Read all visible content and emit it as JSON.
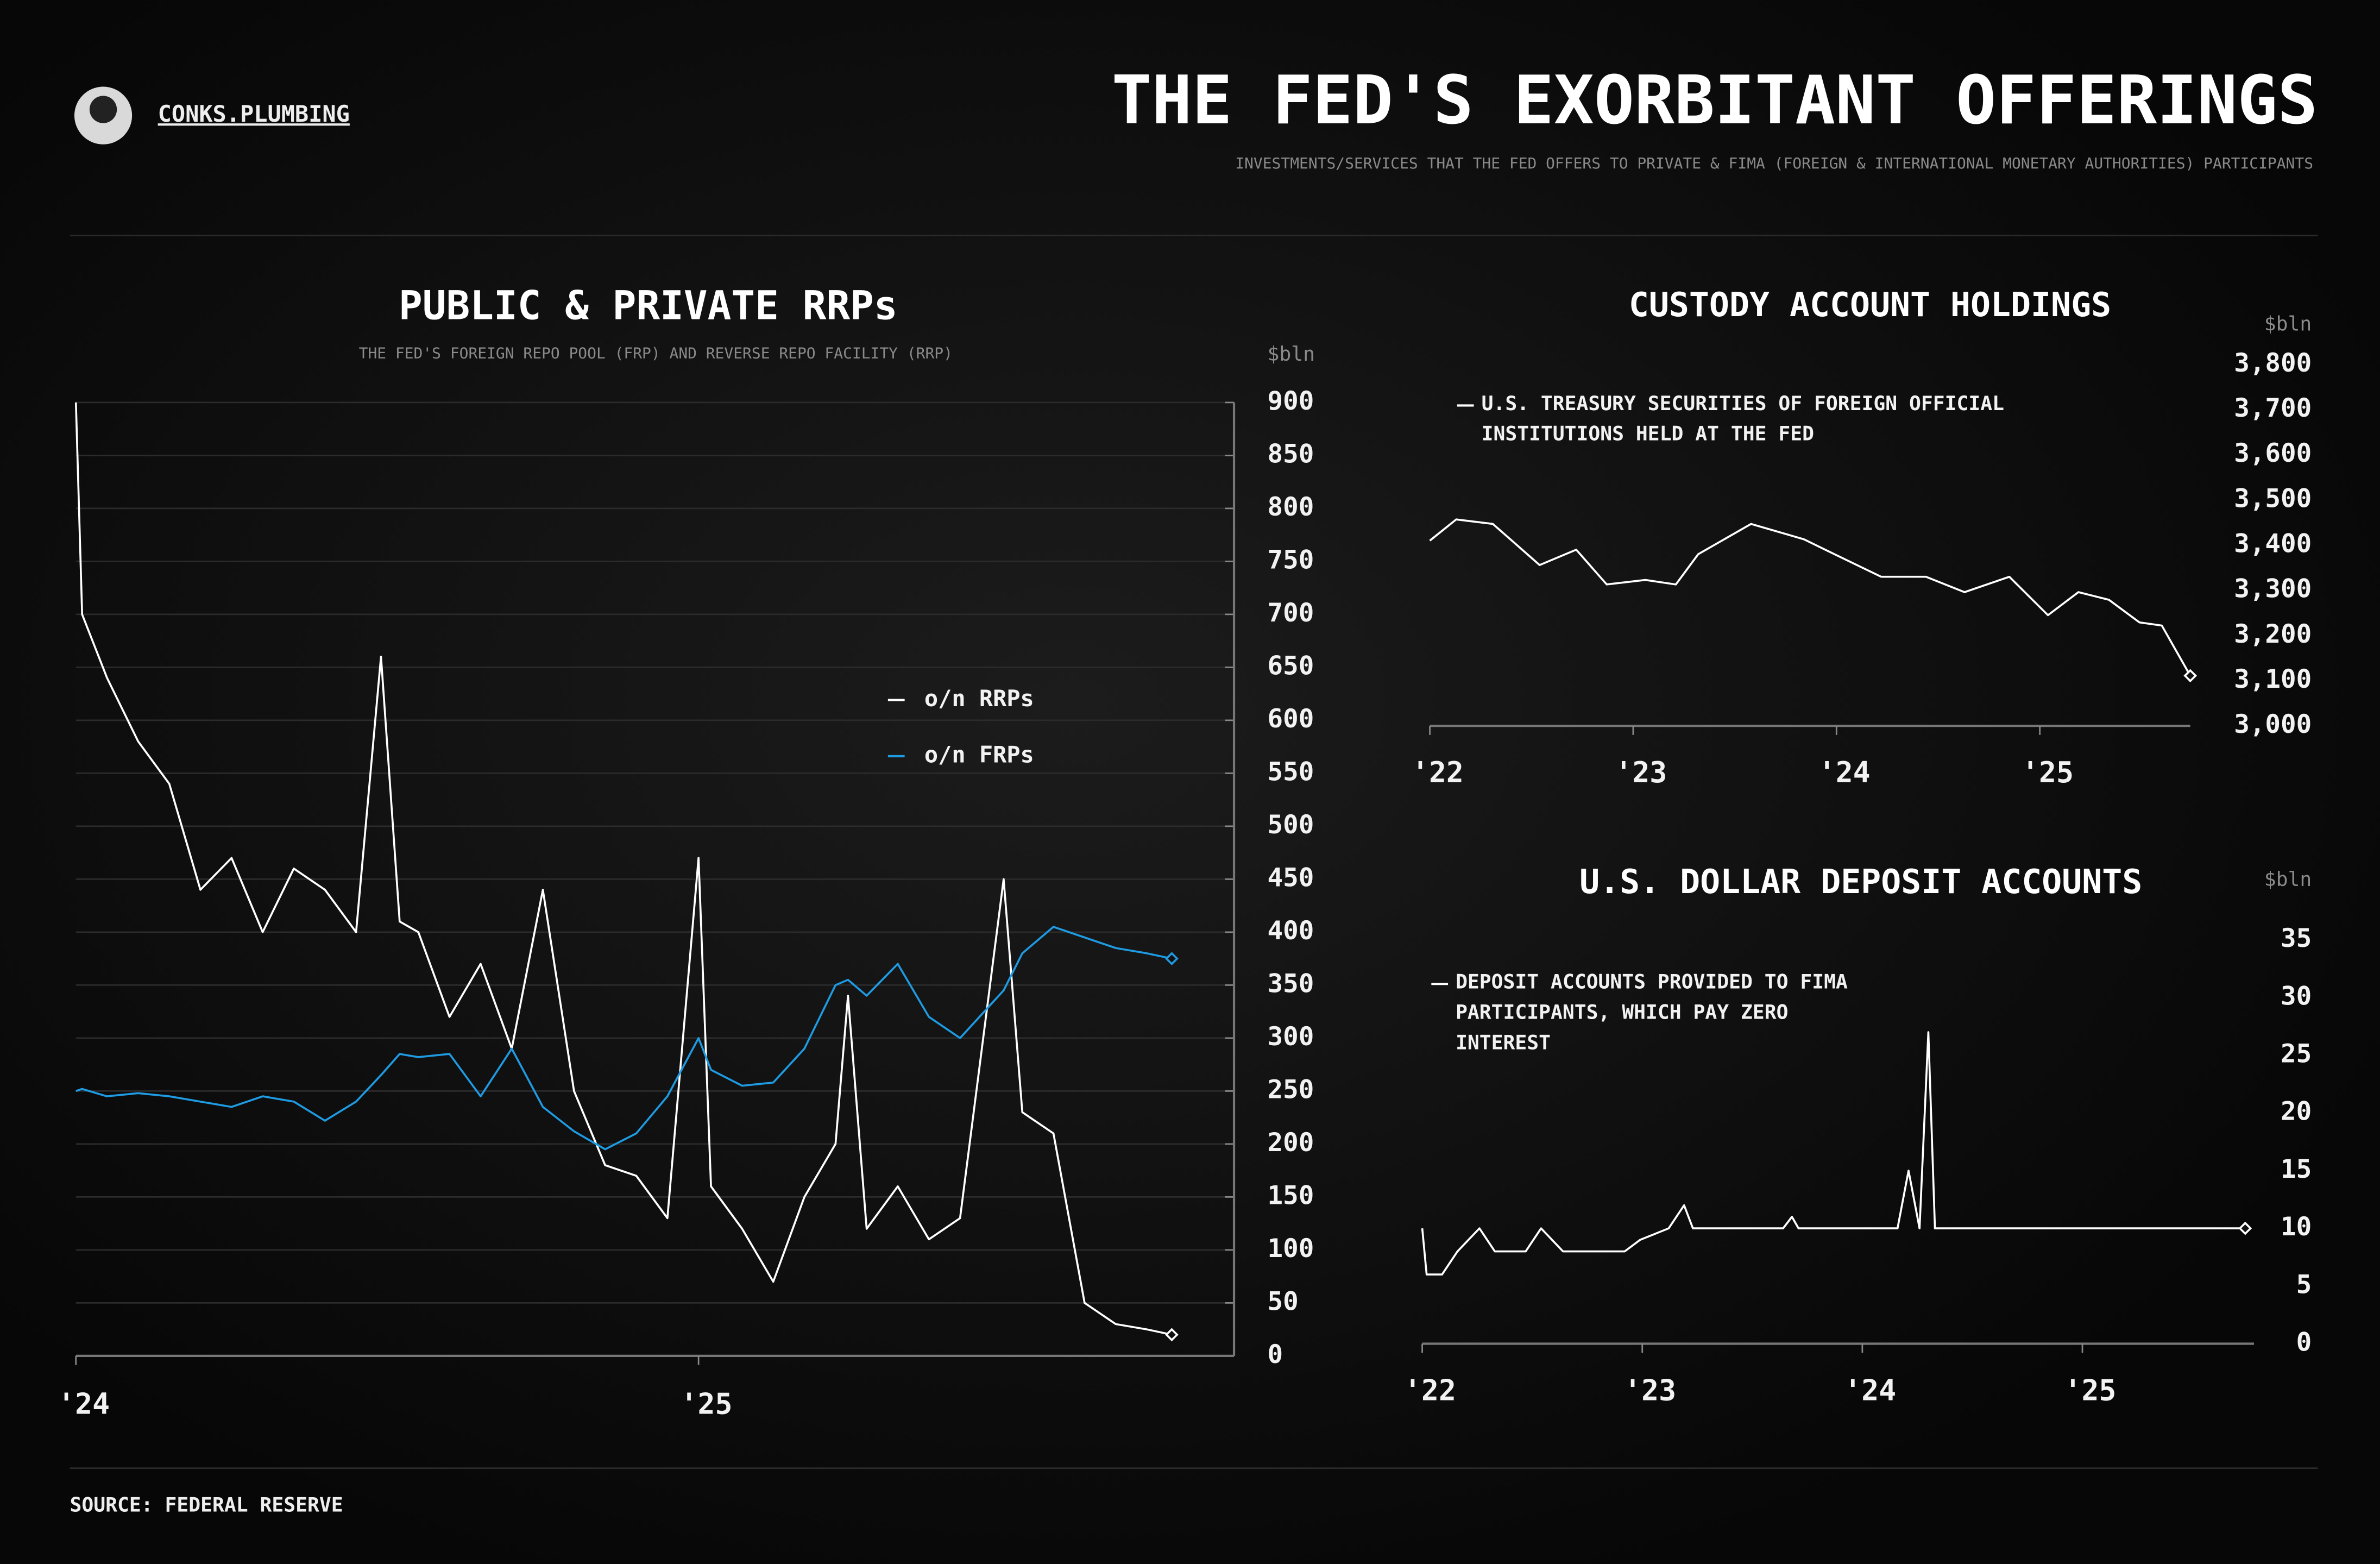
{
  "header": {
    "brand": "CONKS.PLUMBING",
    "title": "THE FED'S EXORBITANT OFFERINGS",
    "subtitle": "INVESTMENTS/SERVICES THAT THE FED OFFERS TO PRIVATE & FIMA (FOREIGN & INTERNATIONAL MONETARY AUTHORITIES) PARTICIPANTS"
  },
  "footer": {
    "source": "SOURCE: FEDERAL RESERVE"
  },
  "chart_data": [
    {
      "type": "line",
      "title": "PUBLIC & PRIVATE RRPs",
      "subtitle": "THE FED'S FOREIGN REPO POOL (FRP) AND REVERSE REPO FACILITY (RRP)",
      "y_unit": "$bln",
      "grid": true,
      "xlim": [
        2024,
        2025.86
      ],
      "xticks": [
        {
          "value": 2024,
          "label": "'24"
        },
        {
          "value": 2025,
          "label": "'25"
        }
      ],
      "ylim": [
        0,
        900
      ],
      "yticks": [
        0,
        50,
        100,
        150,
        200,
        250,
        300,
        350,
        400,
        450,
        500,
        550,
        600,
        650,
        700,
        750,
        800,
        850,
        900
      ],
      "x": [
        2024.0,
        2024.01,
        2024.05,
        2024.1,
        2024.15,
        2024.2,
        2024.25,
        2024.3,
        2024.35,
        2024.4,
        2024.45,
        2024.49,
        2024.52,
        2024.55,
        2024.6,
        2024.65,
        2024.7,
        2024.75,
        2024.8,
        2024.85,
        2024.9,
        2024.95,
        2025.0,
        2025.02,
        2025.07,
        2025.12,
        2025.17,
        2025.22,
        2025.24,
        2025.27,
        2025.32,
        2025.37,
        2025.42,
        2025.49,
        2025.52,
        2025.57,
        2025.62,
        2025.67,
        2025.72,
        2025.76
      ],
      "series": [
        {
          "name": "o/n RRPs",
          "color": "#ffffff",
          "values": [
            900,
            700,
            640,
            580,
            540,
            440,
            470,
            400,
            460,
            440,
            400,
            660,
            410,
            400,
            320,
            370,
            290,
            440,
            250,
            180,
            170,
            130,
            470,
            160,
            120,
            70,
            150,
            200,
            340,
            120,
            160,
            110,
            130,
            450,
            230,
            210,
            50,
            30,
            25,
            20
          ]
        },
        {
          "name": "o/n FRPs",
          "color": "#1e9be3",
          "values": [
            250,
            252,
            245,
            248,
            245,
            240,
            235,
            245,
            240,
            222,
            240,
            265,
            285,
            282,
            285,
            245,
            290,
            235,
            212,
            195,
            210,
            245,
            300,
            270,
            255,
            258,
            290,
            350,
            355,
            340,
            370,
            320,
            300,
            345,
            380,
            405,
            395,
            385,
            380,
            375
          ]
        }
      ]
    },
    {
      "type": "line",
      "title": "CUSTODY ACCOUNT HOLDINGS",
      "y_unit": "$bln",
      "grid": false,
      "xlim": [
        2022,
        2025.74
      ],
      "xticks": [
        {
          "value": 2022,
          "label": "'22"
        },
        {
          "value": 2023,
          "label": "'23"
        },
        {
          "value": 2024,
          "label": "'24"
        },
        {
          "value": 2025,
          "label": "'25"
        }
      ],
      "ylim": [
        3000,
        3800
      ],
      "yticks": [
        {
          "value": 3000,
          "label": "3,000"
        },
        {
          "value": 3100,
          "label": "3,100"
        },
        {
          "value": 3200,
          "label": "3,200"
        },
        {
          "value": 3300,
          "label": "3,300"
        },
        {
          "value": 3400,
          "label": "3,400"
        },
        {
          "value": 3500,
          "label": "3,500"
        },
        {
          "value": 3600,
          "label": "3,600"
        },
        {
          "value": 3700,
          "label": "3,700"
        },
        {
          "value": 3800,
          "label": "3,800"
        }
      ],
      "x": [
        2022.0,
        2022.13,
        2022.31,
        2022.54,
        2022.72,
        2022.87,
        2023.06,
        2023.21,
        2023.32,
        2023.58,
        2023.84,
        2023.99,
        2024.22,
        2024.44,
        2024.63,
        2024.85,
        2025.04,
        2025.19,
        2025.34,
        2025.49,
        2025.6,
        2025.74
      ],
      "series": [
        {
          "name": "U.S. TREASURY SECURITIES OF FOREIGN OFFICIAL INSTITUTIONS HELD AT THE FED",
          "color": "#ffffff",
          "values": [
            3410,
            3457,
            3447,
            3356,
            3390,
            3313,
            3323,
            3313,
            3380,
            3447,
            3413,
            3380,
            3330,
            3330,
            3296,
            3330,
            3245,
            3296,
            3279,
            3229,
            3222,
            3111
          ]
        }
      ]
    },
    {
      "type": "line",
      "title": "U.S. DOLLAR DEPOSIT ACCOUNTS",
      "y_unit": "$bln",
      "grid": false,
      "xlim": [
        2022,
        2025.78
      ],
      "xticks": [
        {
          "value": 2022,
          "label": "'22"
        },
        {
          "value": 2023,
          "label": "'23"
        },
        {
          "value": 2024,
          "label": "'24"
        },
        {
          "value": 2025,
          "label": "'25"
        }
      ],
      "ylim": [
        0,
        35
      ],
      "yticks": [
        0,
        5,
        10,
        15,
        20,
        25,
        30,
        35
      ],
      "x": [
        2022.0,
        2022.02,
        2022.09,
        2022.16,
        2022.26,
        2022.33,
        2022.47,
        2022.54,
        2022.64,
        2022.92,
        2022.99,
        2023.12,
        2023.19,
        2023.23,
        2023.64,
        2023.68,
        2023.71,
        2024.16,
        2024.21,
        2024.26,
        2024.3,
        2024.33,
        2025.74
      ],
      "series": [
        {
          "name": "DEPOSIT ACCOUNTS PROVIDED TO FIMA PARTICIPANTS, WHICH PAY ZERO INTEREST",
          "color": "#ffffff",
          "values": [
            10,
            6,
            6,
            8,
            10,
            8,
            8,
            10,
            8,
            8,
            9,
            10,
            12,
            10,
            10,
            11,
            10,
            10,
            15,
            10,
            27,
            10,
            10
          ]
        }
      ]
    }
  ]
}
